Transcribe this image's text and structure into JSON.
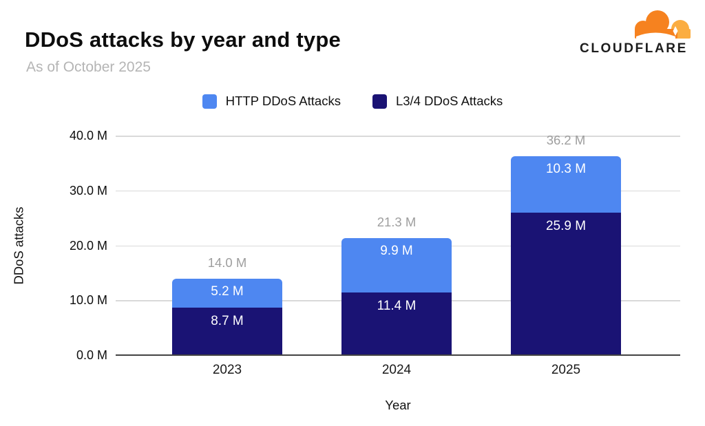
{
  "header": {
    "title": "DDoS attacks by year and type",
    "subtitle": "As of October 2025"
  },
  "logo": {
    "wordmark": "CLOUDFLARE",
    "cloud_orange": "#f6821f",
    "cloud_light_orange": "#fbad41",
    "wordmark_color": "#1d1d1d"
  },
  "chart_data": {
    "type": "bar",
    "stacked": true,
    "title": "DDoS attacks by year and type",
    "subtitle": "As of October 2025",
    "categories": [
      "2023",
      "2024",
      "2025"
    ],
    "series": [
      {
        "name": "HTTP DDoS Attacks",
        "color": "#4e87f1",
        "values": [
          5.2,
          9.9,
          10.3
        ],
        "value_labels": [
          "5.2 M",
          "9.9 M",
          "10.3 M"
        ]
      },
      {
        "name": "L3/4 DDoS Attacks",
        "color": "#1a1374",
        "values": [
          8.7,
          11.4,
          25.9
        ],
        "value_labels": [
          "8.7 M",
          "11.4 M",
          "25.9 M"
        ]
      }
    ],
    "totals": [
      14.0,
      21.3,
      36.2
    ],
    "total_labels": [
      "14.0 M",
      "21.3 M",
      "36.2 M"
    ],
    "xlabel": "Year",
    "ylabel": "DDoS attacks",
    "ylim": [
      0,
      40
    ],
    "ytick_labels": [
      "40.0 M",
      "30.0 M",
      "20.0 M",
      "10.0 M",
      "0.0 M"
    ],
    "grid": true,
    "legend_position": "top",
    "colors": {
      "gridline": "#d9d9d9",
      "baseline": "#424242",
      "total_label": "#9e9e9e",
      "tick_label": "#0d0d0d"
    }
  }
}
